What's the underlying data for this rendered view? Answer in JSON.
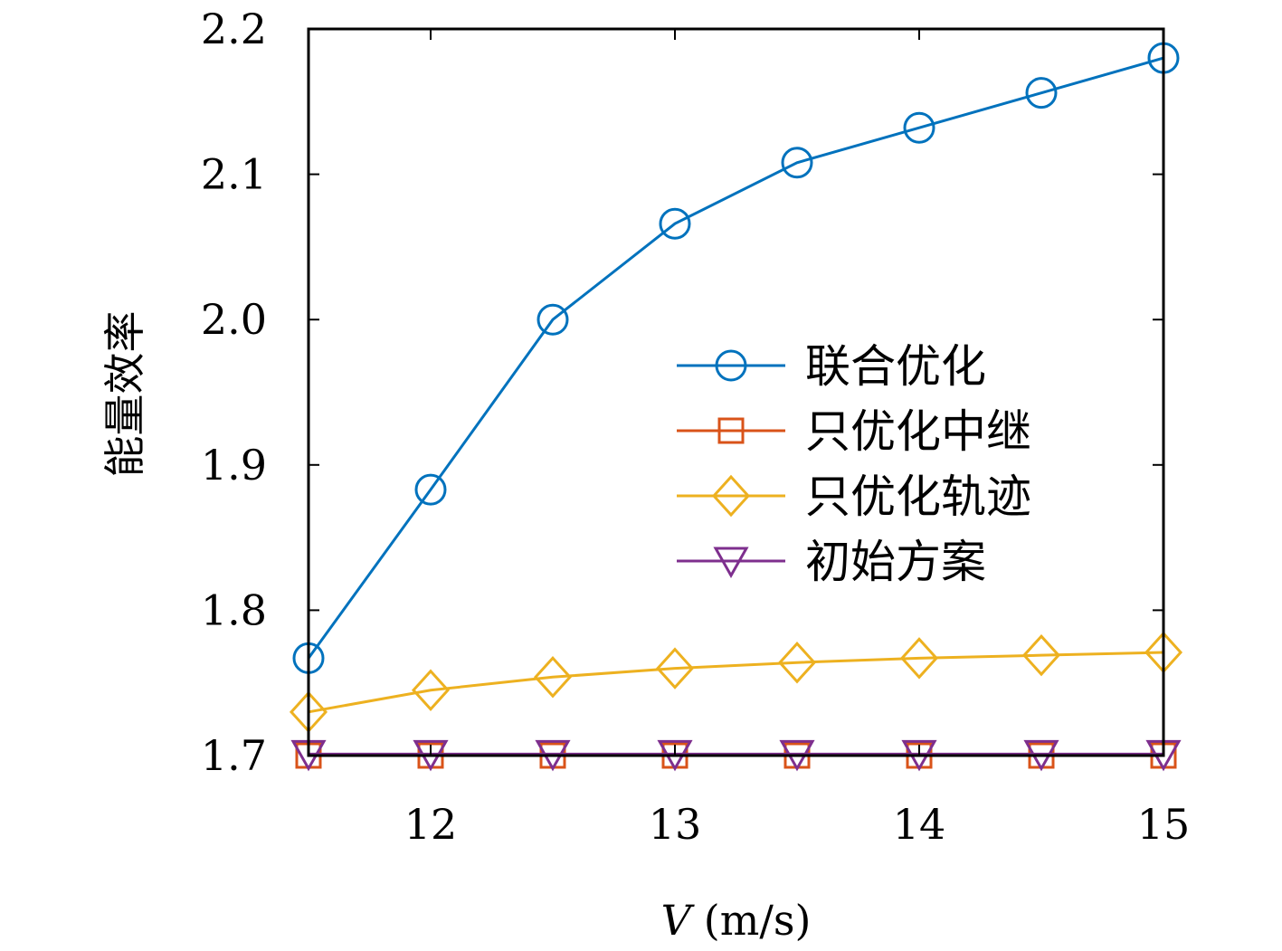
{
  "chart_data": {
    "type": "line",
    "title": "",
    "xlabel_var": "V",
    "xlabel_unit": "(m/s)",
    "ylabel": "能量效率",
    "xlim": [
      11.5,
      15
    ],
    "ylim": [
      1.7,
      2.2
    ],
    "xticks": [
      12,
      13,
      14,
      15
    ],
    "yticks": [
      1.7,
      1.8,
      1.9,
      2.0,
      2.1,
      2.2
    ],
    "ytick_labels": [
      "1.7",
      "1.8",
      "1.9",
      "2.0",
      "2.1",
      "2.2"
    ],
    "grid": false,
    "legend_position": "center-right",
    "x": [
      11.5,
      12,
      12.5,
      13,
      13.5,
      14,
      14.5,
      15
    ],
    "series": [
      {
        "name": "联合优化",
        "color": "#0072bd",
        "marker": "circle",
        "values": [
          1.767,
          1.883,
          2.0,
          2.066,
          2.108,
          2.132,
          2.156,
          2.18
        ]
      },
      {
        "name": "只优化中继",
        "color": "#d95319",
        "marker": "square",
        "values": [
          1.7,
          1.7,
          1.7,
          1.7,
          1.7,
          1.7,
          1.7,
          1.7
        ]
      },
      {
        "name": "只优化轨迹",
        "color": "#edb120",
        "marker": "diamond",
        "values": [
          1.73,
          1.745,
          1.754,
          1.76,
          1.764,
          1.767,
          1.769,
          1.771
        ]
      },
      {
        "name": "初始方案",
        "color": "#7e2f8e",
        "marker": "triangle-down",
        "values": [
          1.701,
          1.701,
          1.701,
          1.701,
          1.701,
          1.701,
          1.701,
          1.701
        ]
      }
    ]
  }
}
